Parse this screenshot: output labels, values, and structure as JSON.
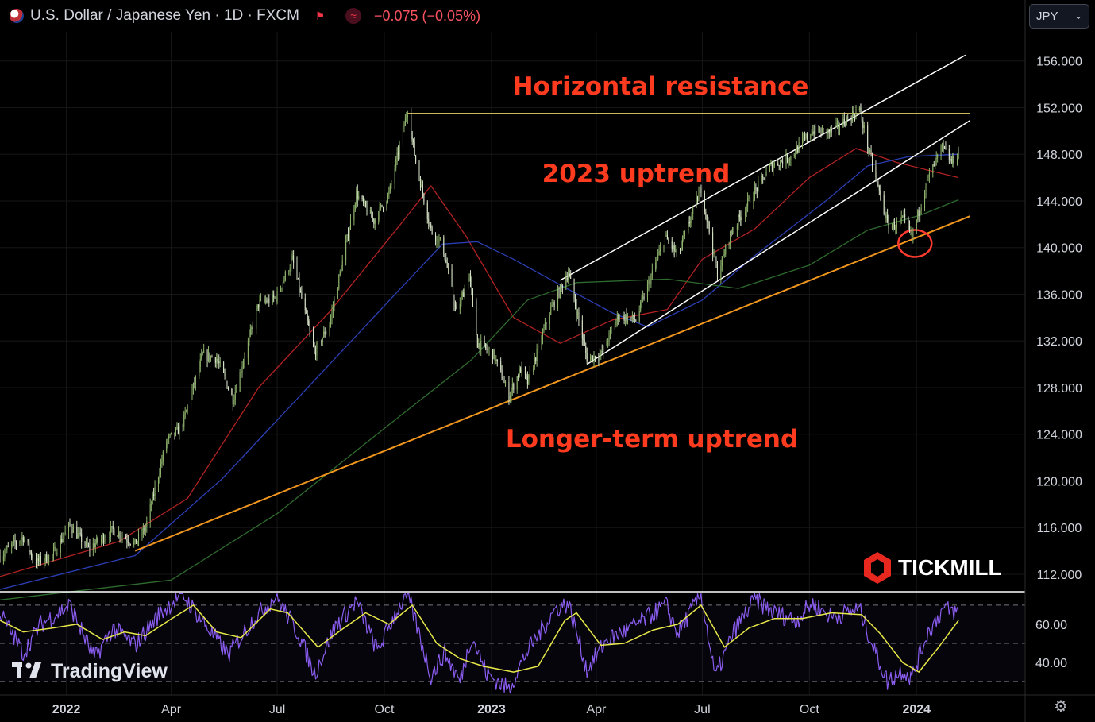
{
  "header": {
    "symbol_title": "U.S. Dollar / Japanese Yen · 1D · FXCM",
    "change": "−0.075 (−0.05%)"
  },
  "currency_select": {
    "value": "JPY"
  },
  "annotations": {
    "resistance": "Horizontal resistance",
    "uptrend_2023": "2023 uptrend",
    "longer_term": "Longer-term uptrend"
  },
  "brand": {
    "tickmill": "TICKMILL",
    "tradingview": "TradingView"
  },
  "colors": {
    "background": "#000000",
    "candle_up": "#8fb46d",
    "candle_down": "#d8e4c8",
    "ma_fast": "#b22222",
    "ma_mid": "#2b3fb5",
    "ma_slow": "#2e6b2e",
    "resistance_line": "#e6d36a",
    "long_trend_line": "#f0961e",
    "channel_lines": "#ffffff",
    "annotation_text": "#ff3b1f",
    "rsi_line": "#8a5cf0",
    "rsi_signal": "#e8e84a",
    "circle": "#ff3b2f"
  },
  "chart_data": [
    {
      "type": "line",
      "name": "price",
      "x_unit": "date",
      "y_label_suffix": "",
      "ylim": [
        110.5,
        158.5
      ],
      "y_ticks": [
        "156.000",
        "152.000",
        "148.000",
        "144.000",
        "140.000",
        "136.000",
        "132.000",
        "128.000",
        "124.000",
        "120.000",
        "116.000",
        "112.000"
      ],
      "x_ticks": [
        {
          "date": "2022-01-01",
          "label": "2022",
          "bold": true
        },
        {
          "date": "2022-04-01",
          "label": "Apr",
          "bold": false
        },
        {
          "date": "2022-07-01",
          "label": "Jul",
          "bold": false
        },
        {
          "date": "2022-10-01",
          "label": "Oct",
          "bold": false
        },
        {
          "date": "2023-01-01",
          "label": "2023",
          "bold": true
        },
        {
          "date": "2023-04-01",
          "label": "Apr",
          "bold": false
        },
        {
          "date": "2023-07-01",
          "label": "Jul",
          "bold": false
        },
        {
          "date": "2023-10-01",
          "label": "Oct",
          "bold": false
        },
        {
          "date": "2024-01-01",
          "label": "2024",
          "bold": true
        }
      ],
      "x_range": [
        "2021-11-05",
        "2024-02-08"
      ],
      "close_path": [
        [
          "2021-11-05",
          113.6
        ],
        [
          "2021-11-25",
          115.2
        ],
        [
          "2021-12-05",
          113.0
        ],
        [
          "2021-12-20",
          113.6
        ],
        [
          "2022-01-04",
          116.2
        ],
        [
          "2022-01-20",
          114.2
        ],
        [
          "2022-02-10",
          115.8
        ],
        [
          "2022-03-01",
          114.6
        ],
        [
          "2022-03-10",
          116.0
        ],
        [
          "2022-03-28",
          123.4
        ],
        [
          "2022-04-10",
          124.6
        ],
        [
          "2022-04-28",
          130.8
        ],
        [
          "2022-05-10",
          130.5
        ],
        [
          "2022-05-24",
          127.0
        ],
        [
          "2022-06-15",
          135.2
        ],
        [
          "2022-06-30",
          135.7
        ],
        [
          "2022-07-14",
          139.0
        ],
        [
          "2022-08-02",
          131.0
        ],
        [
          "2022-08-15",
          133.5
        ],
        [
          "2022-09-07",
          144.6
        ],
        [
          "2022-09-22",
          142.3
        ],
        [
          "2022-10-05",
          144.6
        ],
        [
          "2022-10-21",
          151.8
        ],
        [
          "2022-10-28",
          147.4
        ],
        [
          "2022-11-10",
          141.5
        ],
        [
          "2022-11-20",
          140.2
        ],
        [
          "2022-12-02",
          134.4
        ],
        [
          "2022-12-13",
          137.7
        ],
        [
          "2022-12-20",
          131.8
        ],
        [
          "2023-01-03",
          130.8
        ],
        [
          "2023-01-16",
          127.3
        ],
        [
          "2023-01-26",
          129.6
        ],
        [
          "2023-02-01",
          128.4
        ],
        [
          "2023-02-20",
          134.5
        ],
        [
          "2023-03-08",
          137.9
        ],
        [
          "2023-03-24",
          130.5
        ],
        [
          "2023-04-05",
          130.8
        ],
        [
          "2023-04-20",
          134.2
        ],
        [
          "2023-05-05",
          133.8
        ],
        [
          "2023-05-30",
          140.9
        ],
        [
          "2023-06-10",
          139.3
        ],
        [
          "2023-06-30",
          145.1
        ],
        [
          "2023-07-14",
          137.7
        ],
        [
          "2023-07-25",
          141.1
        ],
        [
          "2023-08-10",
          144.0
        ],
        [
          "2023-08-29",
          147.0
        ],
        [
          "2023-09-15",
          147.8
        ],
        [
          "2023-10-03",
          150.0
        ],
        [
          "2023-10-20",
          149.9
        ],
        [
          "2023-11-13",
          151.9
        ],
        [
          "2023-11-21",
          148.3
        ],
        [
          "2023-12-07",
          142.0
        ],
        [
          "2023-12-13",
          141.9
        ],
        [
          "2023-12-21",
          142.4
        ],
        [
          "2023-12-28",
          140.9
        ],
        [
          "2024-01-10",
          145.7
        ],
        [
          "2024-01-23",
          148.6
        ],
        [
          "2024-01-31",
          147.3
        ],
        [
          "2024-02-06",
          148.1
        ]
      ],
      "moving_averages": [
        {
          "key": "ma_fast",
          "points": [
            [
              "2021-11-05",
              111.8
            ],
            [
              "2022-02-15",
              114.8
            ],
            [
              "2022-04-15",
              118.5
            ],
            [
              "2022-06-15",
              128.0
            ],
            [
              "2022-08-15",
              134.5
            ],
            [
              "2022-10-15",
              142.0
            ],
            [
              "2022-11-10",
              145.3
            ],
            [
              "2022-12-10",
              141.0
            ],
            [
              "2023-01-20",
              134.0
            ],
            [
              "2023-03-01",
              131.8
            ],
            [
              "2023-04-15",
              133.8
            ],
            [
              "2023-06-01",
              134.7
            ],
            [
              "2023-07-01",
              139.0
            ],
            [
              "2023-08-15",
              141.6
            ],
            [
              "2023-10-01",
              146.0
            ],
            [
              "2023-11-10",
              148.5
            ],
            [
              "2023-12-15",
              147.3
            ],
            [
              "2024-02-06",
              146.0
            ]
          ]
        },
        {
          "key": "ma_mid",
          "points": [
            [
              "2021-11-05",
              110.7
            ],
            [
              "2022-03-01",
              113.6
            ],
            [
              "2022-05-15",
              120.2
            ],
            [
              "2022-08-01",
              128.5
            ],
            [
              "2022-10-15",
              136.5
            ],
            [
              "2022-11-20",
              140.3
            ],
            [
              "2022-12-20",
              140.5
            ],
            [
              "2023-01-20",
              139.0
            ],
            [
              "2023-03-01",
              136.8
            ],
            [
              "2023-04-15",
              134.4
            ],
            [
              "2023-05-15",
              133.2
            ],
            [
              "2023-07-01",
              135.5
            ],
            [
              "2023-08-15",
              139.3
            ],
            [
              "2023-10-15",
              144.0
            ],
            [
              "2023-11-20",
              147.0
            ],
            [
              "2023-12-25",
              147.8
            ],
            [
              "2024-02-06",
              148.0
            ]
          ]
        },
        {
          "key": "ma_slow",
          "points": [
            [
              "2021-11-05",
              109.8
            ],
            [
              "2022-04-01",
              111.5
            ],
            [
              "2022-07-01",
              117.2
            ],
            [
              "2022-10-01",
              124.5
            ],
            [
              "2022-12-15",
              130.4
            ],
            [
              "2023-02-01",
              135.5
            ],
            [
              "2023-03-15",
              137.0
            ],
            [
              "2023-06-01",
              137.3
            ],
            [
              "2023-08-01",
              136.5
            ],
            [
              "2023-10-01",
              138.5
            ],
            [
              "2023-11-20",
              141.5
            ],
            [
              "2024-01-05",
              142.8
            ],
            [
              "2024-02-06",
              144.1
            ]
          ]
        }
      ],
      "trend_lines": [
        {
          "key": "resistance_line",
          "from": [
            "2022-10-21",
            151.5
          ],
          "to": [
            "2024-02-16",
            151.5
          ]
        },
        {
          "key": "long_trend_line",
          "from": [
            "2022-03-01",
            114.0
          ],
          "to": [
            "2024-02-16",
            142.7
          ]
        },
        {
          "key": "channel_lines",
          "from": [
            "2023-03-01",
            137.2
          ],
          "to": [
            "2024-02-12",
            156.5
          ]
        },
        {
          "key": "channel_lines",
          "from": [
            "2023-03-24",
            130.0
          ],
          "to": [
            "2024-02-16",
            150.9
          ]
        }
      ],
      "highlight_circle": {
        "center": [
          "2024-01-01",
          140.7
        ]
      }
    },
    {
      "type": "line",
      "name": "oscillator",
      "ylim": [
        23,
        77
      ],
      "y_ticks": [
        "60.00",
        "40.00"
      ],
      "reference_levels": [
        70,
        50,
        30
      ],
      "line_path": [
        [
          "2021-11-05",
          66
        ],
        [
          "2021-11-25",
          45
        ],
        [
          "2021-12-10",
          60
        ],
        [
          "2022-01-04",
          70
        ],
        [
          "2022-01-25",
          42
        ],
        [
          "2022-02-10",
          58
        ],
        [
          "2022-03-01",
          49
        ],
        [
          "2022-03-20",
          64
        ],
        [
          "2022-04-10",
          76
        ],
        [
          "2022-04-30",
          60
        ],
        [
          "2022-05-20",
          44
        ],
        [
          "2022-06-10",
          62
        ],
        [
          "2022-06-30",
          75
        ],
        [
          "2022-07-20",
          54
        ],
        [
          "2022-08-02",
          34
        ],
        [
          "2022-08-20",
          59
        ],
        [
          "2022-09-07",
          72
        ],
        [
          "2022-09-25",
          46
        ],
        [
          "2022-10-10",
          65
        ],
        [
          "2022-10-21",
          76
        ],
        [
          "2022-11-10",
          33
        ],
        [
          "2022-11-22",
          45
        ],
        [
          "2022-12-05",
          30
        ],
        [
          "2022-12-15",
          54
        ],
        [
          "2022-12-28",
          34
        ],
        [
          "2023-01-16",
          26
        ],
        [
          "2023-01-30",
          44
        ],
        [
          "2023-02-25",
          68
        ],
        [
          "2023-03-08",
          71
        ],
        [
          "2023-03-24",
          36
        ],
        [
          "2023-04-10",
          52
        ],
        [
          "2023-05-01",
          58
        ],
        [
          "2023-05-31",
          70
        ],
        [
          "2023-06-10",
          55
        ],
        [
          "2023-06-30",
          76
        ],
        [
          "2023-07-12",
          32
        ],
        [
          "2023-07-28",
          56
        ],
        [
          "2023-08-15",
          73
        ],
        [
          "2023-09-01",
          66
        ],
        [
          "2023-09-20",
          62
        ],
        [
          "2023-10-03",
          71
        ],
        [
          "2023-10-20",
          64
        ],
        [
          "2023-11-13",
          68
        ],
        [
          "2023-11-25",
          48
        ],
        [
          "2023-12-07",
          30
        ],
        [
          "2023-12-20",
          36
        ],
        [
          "2023-12-28",
          32
        ],
        [
          "2024-01-10",
          55
        ],
        [
          "2024-01-24",
          68
        ],
        [
          "2024-02-06",
          66
        ]
      ],
      "signal_path": [
        [
          "2021-11-05",
          62
        ],
        [
          "2021-11-25",
          56
        ],
        [
          "2021-12-20",
          58
        ],
        [
          "2022-01-10",
          60
        ],
        [
          "2022-02-01",
          52
        ],
        [
          "2022-02-20",
          56
        ],
        [
          "2022-03-10",
          54
        ],
        [
          "2022-03-30",
          62
        ],
        [
          "2022-04-20",
          70
        ],
        [
          "2022-05-10",
          56
        ],
        [
          "2022-05-31",
          53
        ],
        [
          "2022-06-25",
          68
        ],
        [
          "2022-07-10",
          66
        ],
        [
          "2022-08-05",
          48
        ],
        [
          "2022-08-25",
          57
        ],
        [
          "2022-09-15",
          66
        ],
        [
          "2022-10-05",
          60
        ],
        [
          "2022-10-25",
          70
        ],
        [
          "2022-11-15",
          50
        ],
        [
          "2022-12-05",
          42
        ],
        [
          "2022-12-25",
          38
        ],
        [
          "2023-01-20",
          35
        ],
        [
          "2023-02-10",
          38
        ],
        [
          "2023-03-05",
          62
        ],
        [
          "2023-03-15",
          66
        ],
        [
          "2023-04-05",
          49
        ],
        [
          "2023-04-25",
          50
        ],
        [
          "2023-05-20",
          57
        ],
        [
          "2023-06-10",
          60
        ],
        [
          "2023-06-30",
          70
        ],
        [
          "2023-07-20",
          48
        ],
        [
          "2023-08-10",
          58
        ],
        [
          "2023-09-01",
          63
        ],
        [
          "2023-09-25",
          63
        ],
        [
          "2023-10-20",
          66
        ],
        [
          "2023-11-15",
          65
        ],
        [
          "2023-12-01",
          55
        ],
        [
          "2023-12-20",
          40
        ],
        [
          "2024-01-03",
          35
        ],
        [
          "2024-01-20",
          48
        ],
        [
          "2024-02-06",
          62
        ]
      ]
    }
  ]
}
